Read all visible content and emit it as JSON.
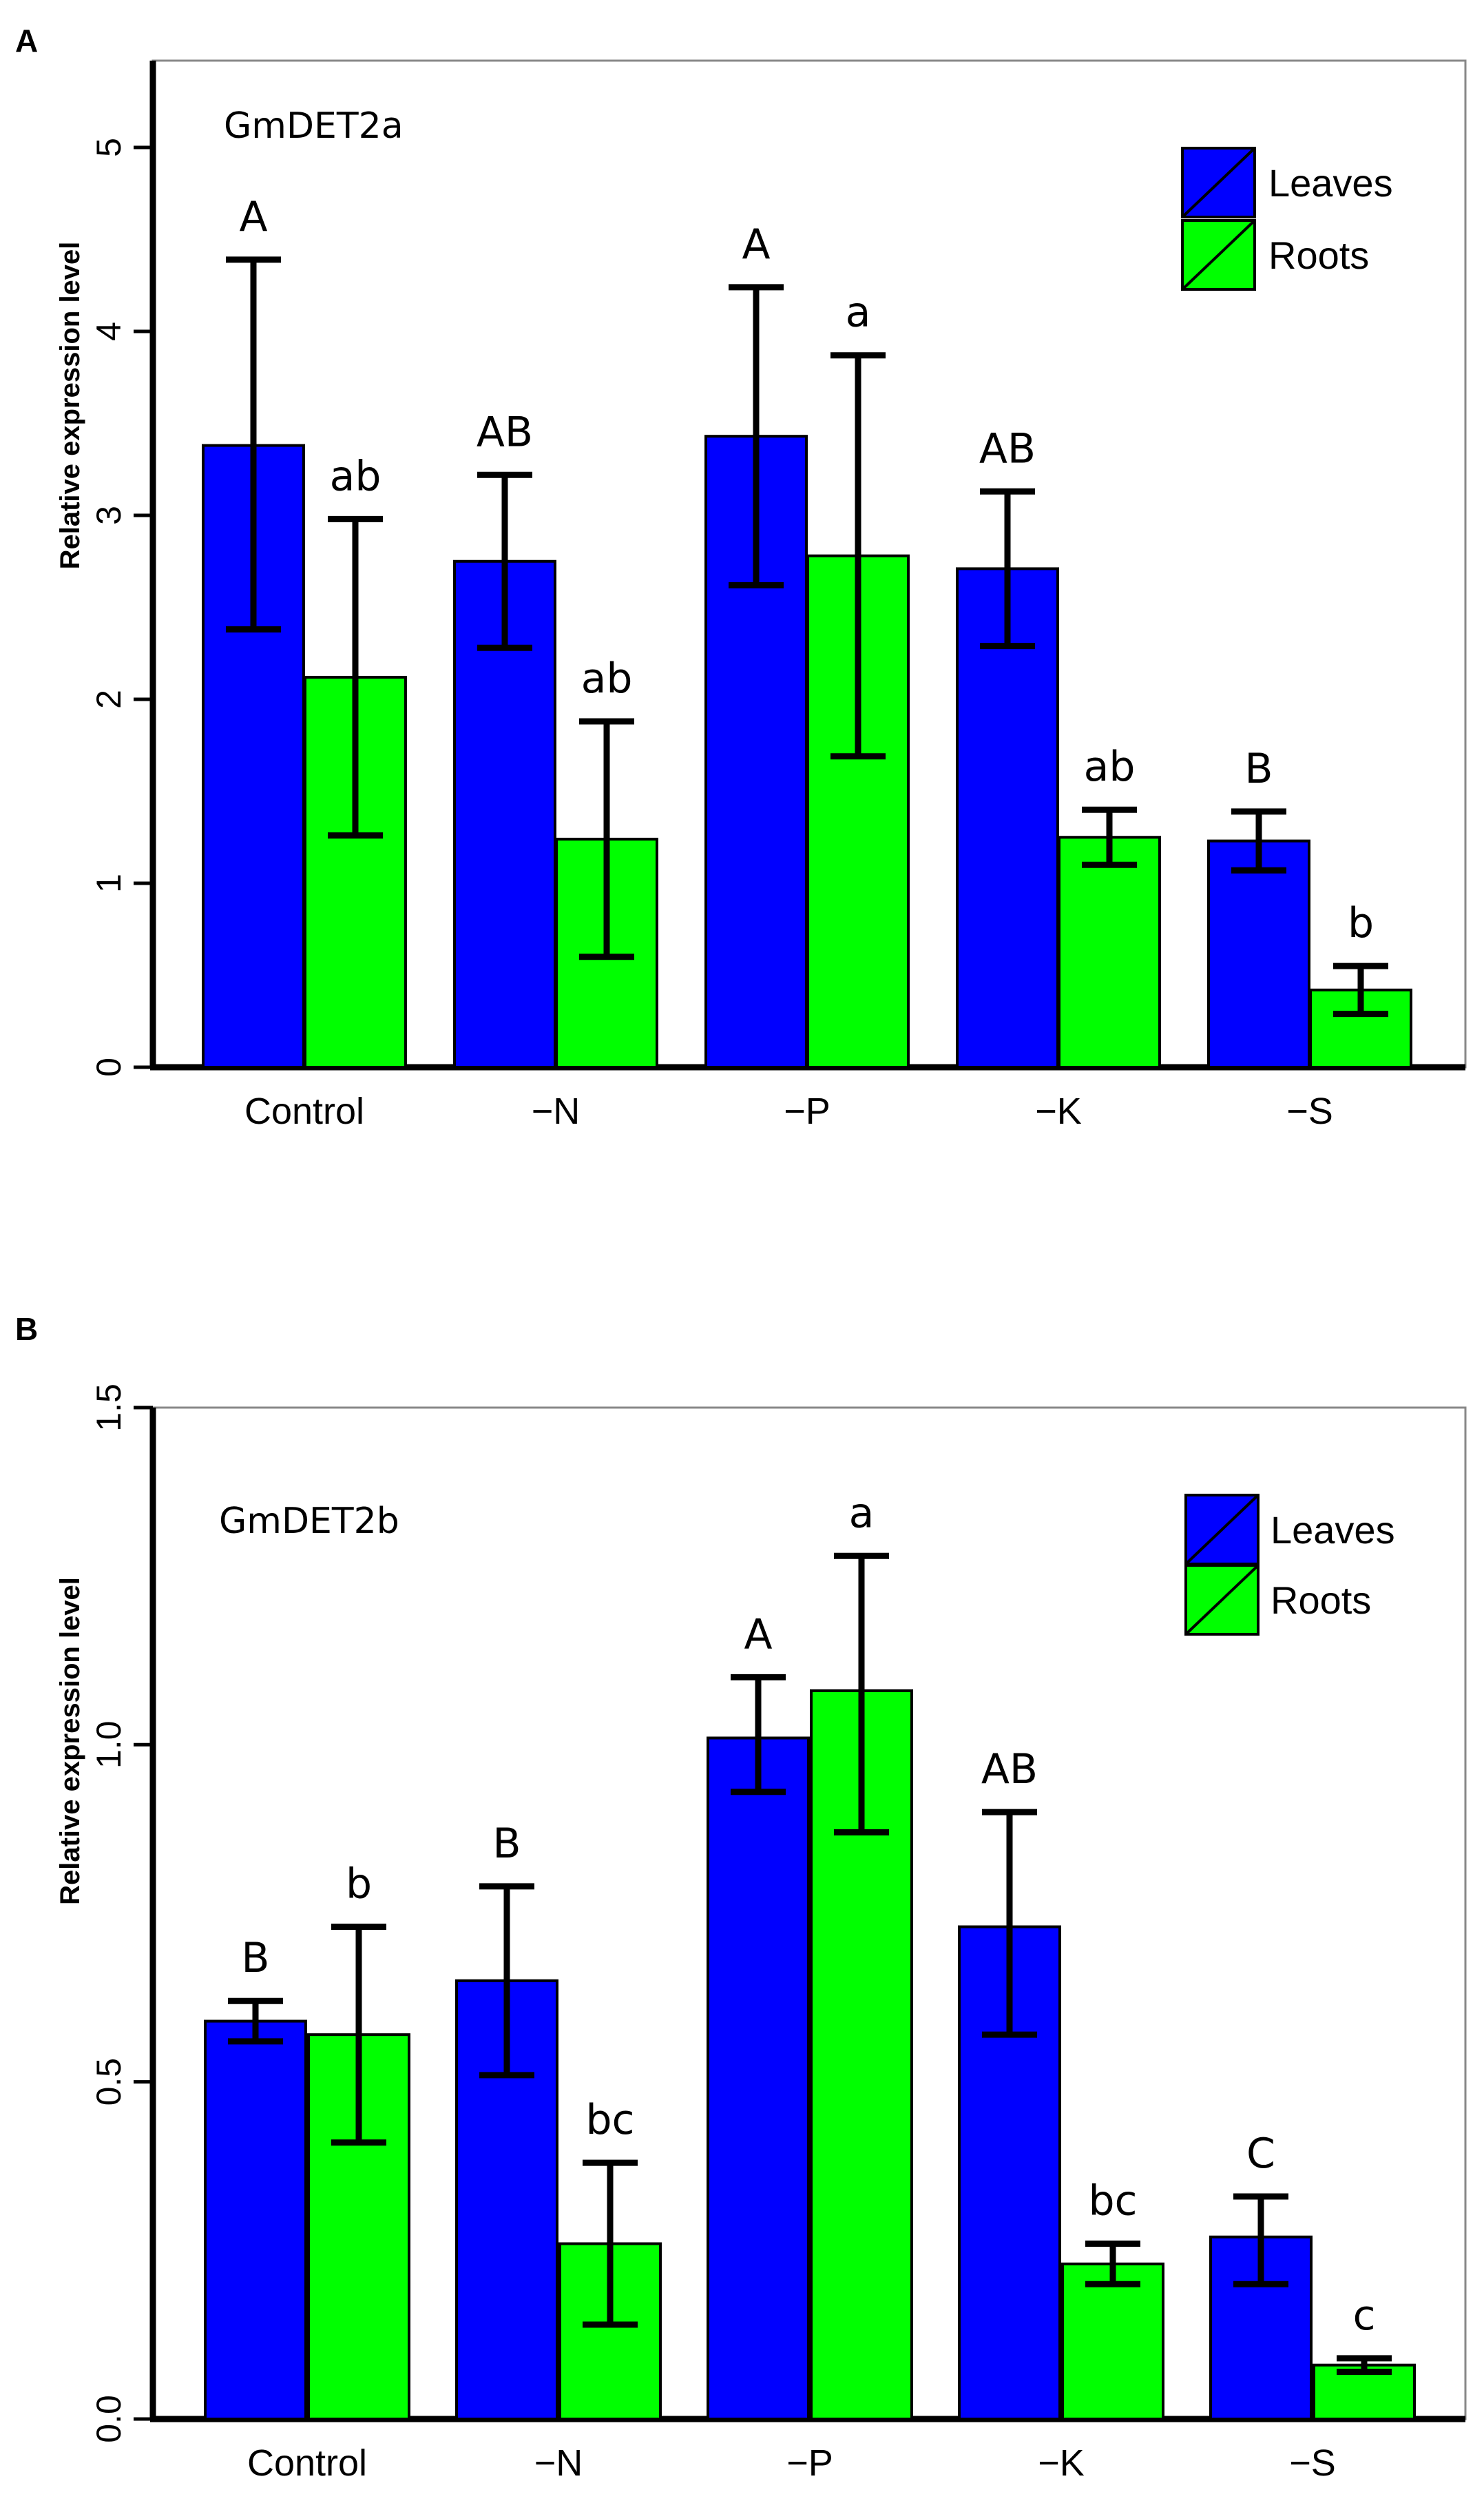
{
  "chart_data": [
    {
      "type": "bar",
      "panel_label": "A",
      "title": "GmDET2a",
      "ylabel": "Relative expression level",
      "xlabel": "",
      "ylim": [
        0,
        5.4
      ],
      "yticks": [
        0,
        1,
        2,
        3,
        4,
        5
      ],
      "ytick_labels": [
        "0",
        "1",
        "2",
        "3",
        "4",
        "5"
      ],
      "categories": [
        "Control",
        "−N",
        "−P",
        "−K",
        "−S"
      ],
      "series": [
        {
          "name": "Leaves",
          "color": "#0000FF",
          "values": [
            3.38,
            2.75,
            3.43,
            2.71,
            1.23
          ],
          "err_low": [
            2.38,
            2.28,
            2.62,
            2.29,
            1.07
          ],
          "err_high": [
            4.39,
            3.22,
            4.24,
            3.13,
            1.39
          ],
          "letters": [
            "A",
            "AB",
            "A",
            "AB",
            "B"
          ]
        },
        {
          "name": "Roots",
          "color": "#00FF00",
          "values": [
            2.12,
            1.24,
            2.78,
            1.25,
            0.42
          ],
          "err_low": [
            1.26,
            0.6,
            1.69,
            1.1,
            0.29
          ],
          "err_high": [
            2.98,
            1.88,
            3.87,
            1.4,
            0.55
          ],
          "letters": [
            "ab",
            "ab",
            "a",
            "ab",
            "b"
          ]
        }
      ],
      "legend": {
        "position": "top-right",
        "entries": [
          "Leaves",
          "Roots"
        ]
      }
    },
    {
      "type": "bar",
      "panel_label": "B",
      "title": "GmDET2b",
      "ylabel": "Relative expression level",
      "xlabel": "",
      "ylim": [
        0,
        1.5
      ],
      "yticks": [
        0,
        0.5,
        1.0,
        1.5
      ],
      "ytick_labels": [
        "0.0",
        "0.5",
        "1.0",
        "1.5"
      ],
      "categories": [
        "Control",
        "−N",
        "−P",
        "−K",
        "−S"
      ],
      "series": [
        {
          "name": "Leaves",
          "color": "#0000FF",
          "values": [
            0.59,
            0.65,
            1.01,
            0.73,
            0.27
          ],
          "err_low": [
            0.56,
            0.51,
            0.93,
            0.57,
            0.2
          ],
          "err_high": [
            0.62,
            0.79,
            1.1,
            0.9,
            0.33
          ],
          "letters": [
            "B",
            "B",
            "A",
            "AB",
            "C"
          ]
        },
        {
          "name": "Roots",
          "color": "#00FF00",
          "values": [
            0.57,
            0.26,
            1.08,
            0.23,
            0.08
          ],
          "err_low": [
            0.41,
            0.14,
            0.87,
            0.2,
            0.07
          ],
          "err_high": [
            0.73,
            0.38,
            1.28,
            0.26,
            0.09
          ],
          "letters": [
            "b",
            "bc",
            "a",
            "bc",
            "c"
          ]
        }
      ],
      "legend": {
        "position": "top-right",
        "entries": [
          "Leaves",
          "Roots"
        ]
      }
    }
  ]
}
